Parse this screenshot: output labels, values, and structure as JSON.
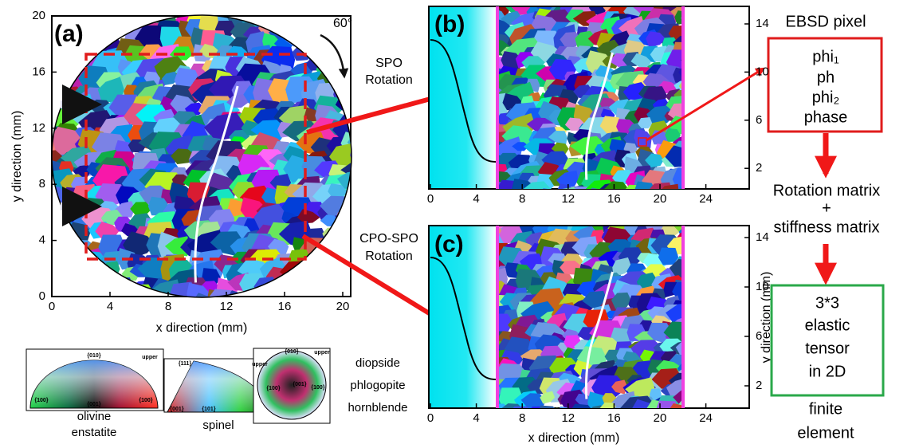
{
  "panel_a": {
    "label": "(a)",
    "rotation": "60°",
    "x_label": "x direction (mm)",
    "y_label": "y direction (mm)",
    "xticks": [
      0,
      4,
      8,
      12,
      16,
      20
    ],
    "yticks": [
      0,
      4,
      8,
      12,
      16,
      20
    ]
  },
  "panel_b": {
    "label": "(b)",
    "annotation": [
      "SPO",
      "Rotation"
    ],
    "xticks": [
      0,
      4,
      8,
      12,
      16,
      20,
      24
    ],
    "yticks": [
      2,
      6,
      10,
      14
    ]
  },
  "panel_c": {
    "label": "(c)",
    "annotation": [
      "CPO-SPO",
      "Rotation"
    ],
    "x_label": "x direction (mm)",
    "y_label": "y direction (mm)",
    "xticks": [
      0,
      4,
      8,
      12,
      16,
      20,
      24
    ],
    "yticks": [
      2,
      6,
      10,
      14
    ]
  },
  "color_keys": [
    {
      "poles": [
        "{010}",
        "upper",
        "{100}",
        "{001}",
        "{100}"
      ],
      "minerals": [
        "olivine",
        "enstatite"
      ]
    },
    {
      "poles": [
        "{111}",
        "upper",
        "{001}",
        "{101}"
      ],
      "minerals": [
        "spinel"
      ]
    },
    {
      "poles": [
        "{010}",
        "upper",
        "{100}",
        "{001}",
        "{100}"
      ],
      "minerals": [
        "diopside",
        "phlogopite",
        "hornblende"
      ]
    }
  ],
  "workflow": {
    "input_title": "EBSD pixel",
    "input_fields": [
      "phi₁",
      "ph",
      "phi₂",
      "phase"
    ],
    "step": [
      "Rotation matrix",
      "+",
      "stiffness matrix"
    ],
    "output": [
      "3*3",
      "elastic",
      "tensor",
      "in 2D"
    ],
    "result": [
      "finite",
      "element"
    ]
  }
}
